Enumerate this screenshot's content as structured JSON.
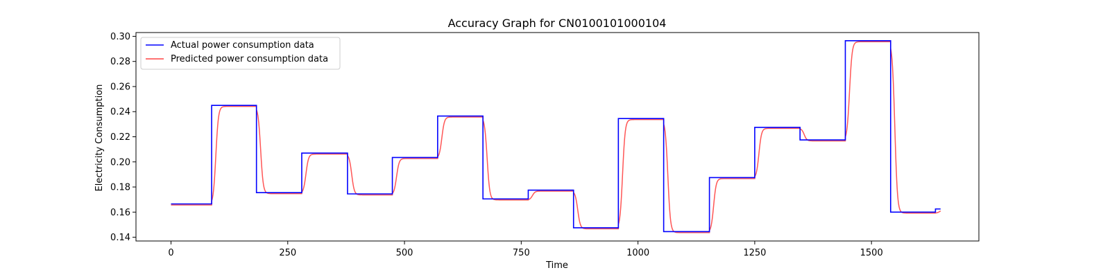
{
  "chart_data": {
    "type": "line",
    "title": "Accuracy Graph for CN0100101000104",
    "xlabel": "Time",
    "ylabel": "Electricity Consumption",
    "xlim": [
      -75,
      1730
    ],
    "ylim": [
      0.137,
      0.303
    ],
    "xticks": [
      0,
      250,
      500,
      750,
      1000,
      1250,
      1500
    ],
    "xtick_labels": [
      "0",
      "250",
      "500",
      "750",
      "1000",
      "1250",
      "1500"
    ],
    "yticks": [
      0.14,
      0.16,
      0.18,
      0.2,
      0.22,
      0.24,
      0.26,
      0.28,
      0.3
    ],
    "ytick_labels": [
      "0.14",
      "0.16",
      "0.18",
      "0.20",
      "0.22",
      "0.24",
      "0.26",
      "0.28",
      "0.30"
    ],
    "grid": false,
    "legend_position": "top-left",
    "series": [
      {
        "name": "Actual power consumption data",
        "color": "#0000ff",
        "segments": [
          {
            "start": 0,
            "end": 87,
            "value": 0.1665
          },
          {
            "start": 87,
            "end": 183,
            "value": 0.245
          },
          {
            "start": 183,
            "end": 280,
            "value": 0.1755
          },
          {
            "start": 280,
            "end": 378,
            "value": 0.207
          },
          {
            "start": 378,
            "end": 474,
            "value": 0.1745
          },
          {
            "start": 474,
            "end": 571,
            "value": 0.2035
          },
          {
            "start": 571,
            "end": 668,
            "value": 0.2365
          },
          {
            "start": 668,
            "end": 765,
            "value": 0.1705
          },
          {
            "start": 765,
            "end": 862,
            "value": 0.1775
          },
          {
            "start": 862,
            "end": 958,
            "value": 0.1475
          },
          {
            "start": 958,
            "end": 1055,
            "value": 0.2345
          },
          {
            "start": 1055,
            "end": 1153,
            "value": 0.1445
          },
          {
            "start": 1153,
            "end": 1250,
            "value": 0.1875
          },
          {
            "start": 1250,
            "end": 1347,
            "value": 0.2275
          },
          {
            "start": 1347,
            "end": 1444,
            "value": 0.2175
          },
          {
            "start": 1444,
            "end": 1541,
            "value": 0.2965
          },
          {
            "start": 1541,
            "end": 1637,
            "value": 0.16
          },
          {
            "start": 1637,
            "end": 1648,
            "value": 0.1625
          }
        ]
      },
      {
        "name": "Predicted power consumption data",
        "color": "#ff4444",
        "lag": 10,
        "offset": -0.0008
      }
    ]
  }
}
